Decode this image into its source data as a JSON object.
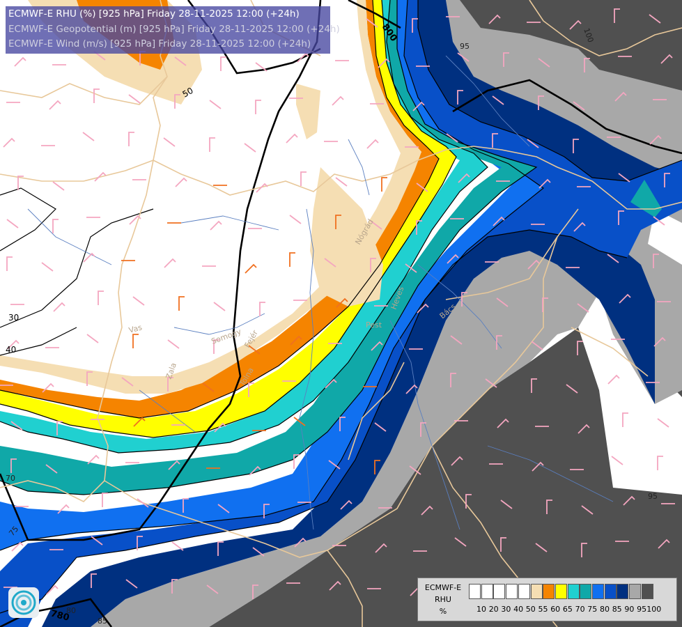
{
  "title_lines": [
    {
      "text": "ECMWF-E RHU (%) [925 hPa] Friday 28-11-2025 12:00 (+24h)",
      "color": "#ffffff"
    },
    {
      "text": "ECMWF-E Geopotential (m) [925 hPa] Friday 28-11-2025 12:00 (+24h)",
      "color": "#cfcfdf"
    },
    {
      "text": "ECMWF-E Wind (m/s) [925 hPa] Friday 28-11-2025 12:00 (+24h)",
      "color": "#cfcfdf"
    }
  ],
  "legend": {
    "label_lines": [
      "ECMWF-E",
      "RHU",
      "%"
    ],
    "ticks": [
      "10",
      "20",
      "30",
      "40",
      "50",
      "55",
      "60",
      "65",
      "70",
      "75",
      "80",
      "85",
      "90",
      "95",
      "100"
    ],
    "colors": [
      "#ffffff",
      "#ffffff",
      "#ffffff",
      "#ffffff",
      "#ffffff",
      "#f5deb3",
      "#f58400",
      "#ffff00",
      "#20d0d0",
      "#10a8a8",
      "#1070f0",
      "#0850c8",
      "#003080",
      "#a8a8a8",
      "#505050"
    ]
  },
  "contour_labels": [
    "800",
    "780",
    "50",
    "40",
    "30",
    "70",
    "75",
    "80",
    "85",
    "95",
    "95",
    "100"
  ],
  "place_labels": [
    "Vas",
    "Zala",
    "Somogy",
    "Fejér",
    "Tolna",
    "Pest",
    "Nógrád",
    "Heves",
    "Bács"
  ],
  "colors": {
    "background": "#ffffff",
    "rhu_50": "#f5deb3",
    "rhu_60": "#f58400",
    "rhu_65": "#ffff00",
    "rhu_70": "#20d0d0",
    "rhu_75": "#10a8a8",
    "rhu_80": "#1070f0",
    "rhu_85": "#0850c8",
    "rhu_90": "#003080",
    "rhu_95": "#a8a8a8",
    "rhu_100": "#505050",
    "borders": "#e8c89a",
    "rivers": "#5a7fc0",
    "wind_light": "#f4a6c0",
    "wind_strong": "#f07020"
  }
}
